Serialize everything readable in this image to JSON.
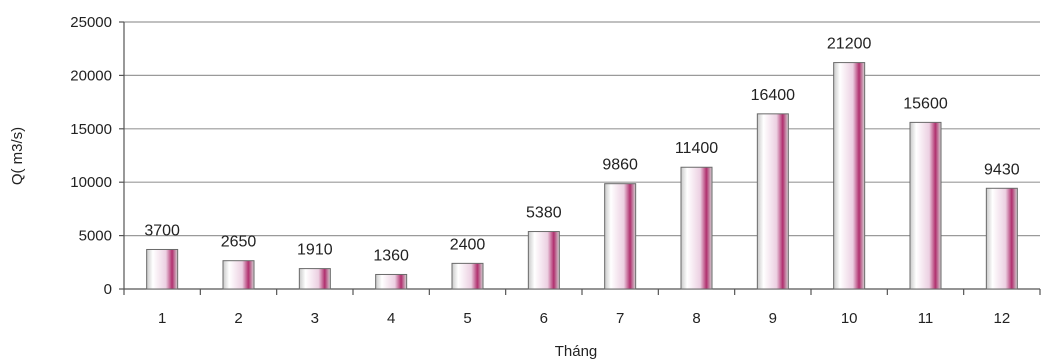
{
  "chart_data": {
    "type": "bar",
    "title": "",
    "xlabel": "Tháng",
    "ylabel": "Q( m3/s)",
    "categories": [
      "1",
      "2",
      "3",
      "4",
      "5",
      "6",
      "7",
      "8",
      "9",
      "10",
      "11",
      "12"
    ],
    "values": [
      3700,
      2650,
      1910,
      1360,
      2400,
      5380,
      9860,
      11400,
      16400,
      21200,
      15600,
      9430
    ],
    "data_labels": [
      "3700",
      "2650",
      "1910",
      "1360",
      "2400",
      "5380",
      "9860",
      "11400",
      "16400",
      "21200",
      "15600",
      "9430"
    ],
    "ylim": [
      0,
      25000
    ],
    "yticks": [
      0,
      5000,
      10000,
      15000,
      20000,
      25000
    ],
    "ytick_labels": [
      "0",
      "5000",
      "10000",
      "15000",
      "20000",
      "25000"
    ],
    "grid": true,
    "legend": "none",
    "colors": {
      "bar_light": "#ffffff",
      "bar_mid": "#e8c8dc",
      "bar_dark": "#b0306e",
      "grid": "#9a9a9a"
    }
  }
}
